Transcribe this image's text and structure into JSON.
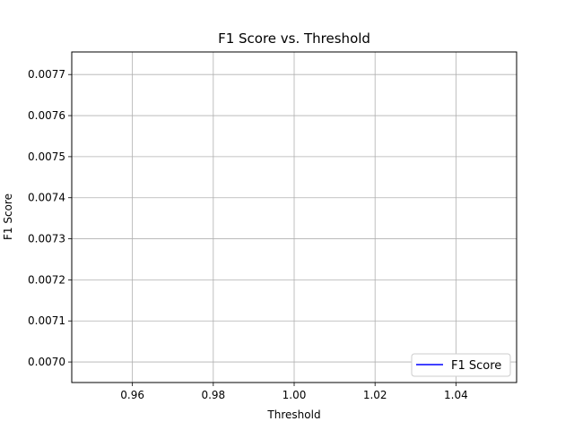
{
  "chart_data": {
    "type": "line",
    "title": "F1 Score vs. Threshold",
    "xlabel": "Threshold",
    "ylabel": "F1 Score",
    "xlim": [
      0.945,
      1.055
    ],
    "ylim": [
      0.00695,
      0.007755
    ],
    "xticks": [
      0.96,
      0.98,
      1.0,
      1.02,
      1.04
    ],
    "xtick_labels": [
      "0.96",
      "0.98",
      "1.00",
      "1.02",
      "1.04"
    ],
    "yticks": [
      0.007,
      0.0071,
      0.0072,
      0.0073,
      0.0074,
      0.0075,
      0.0076,
      0.0077
    ],
    "ytick_labels": [
      "0.0070",
      "0.0071",
      "0.0072",
      "0.0073",
      "0.0074",
      "0.0075",
      "0.0076",
      "0.0077"
    ],
    "grid": true,
    "legend": {
      "placement": "lower-right",
      "entries": [
        "F1 Score"
      ]
    },
    "series": [
      {
        "name": "F1 Score",
        "color": "#0000ff",
        "x": [],
        "y": []
      }
    ]
  }
}
